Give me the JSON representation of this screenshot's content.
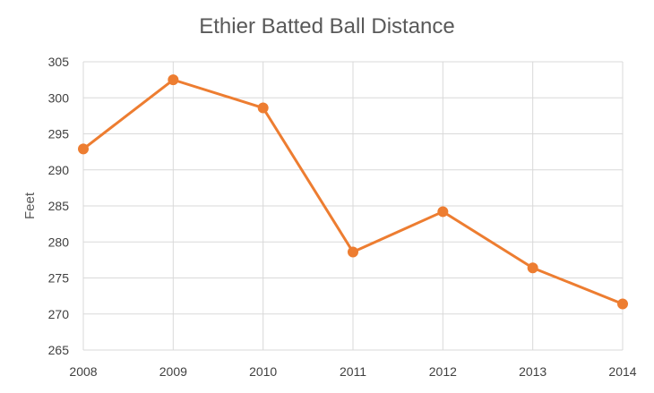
{
  "chart_data": {
    "type": "line",
    "title": "Ethier Batted Ball Distance",
    "xlabel": "",
    "ylabel": "Feet",
    "categories": [
      "2008",
      "2009",
      "2010",
      "2011",
      "2012",
      "2013",
      "2014"
    ],
    "series": [
      {
        "values": [
          292.9,
          302.5,
          298.6,
          278.6,
          284.2,
          276.4,
          271.4
        ],
        "color": "#ED7D31"
      }
    ],
    "ylim": [
      265,
      305
    ],
    "yticks": [
      265,
      270,
      275,
      280,
      285,
      290,
      295,
      300,
      305
    ],
    "grid": true,
    "legend": "none",
    "gridline_color": "#D9D9D9",
    "text_color": "#595959"
  }
}
